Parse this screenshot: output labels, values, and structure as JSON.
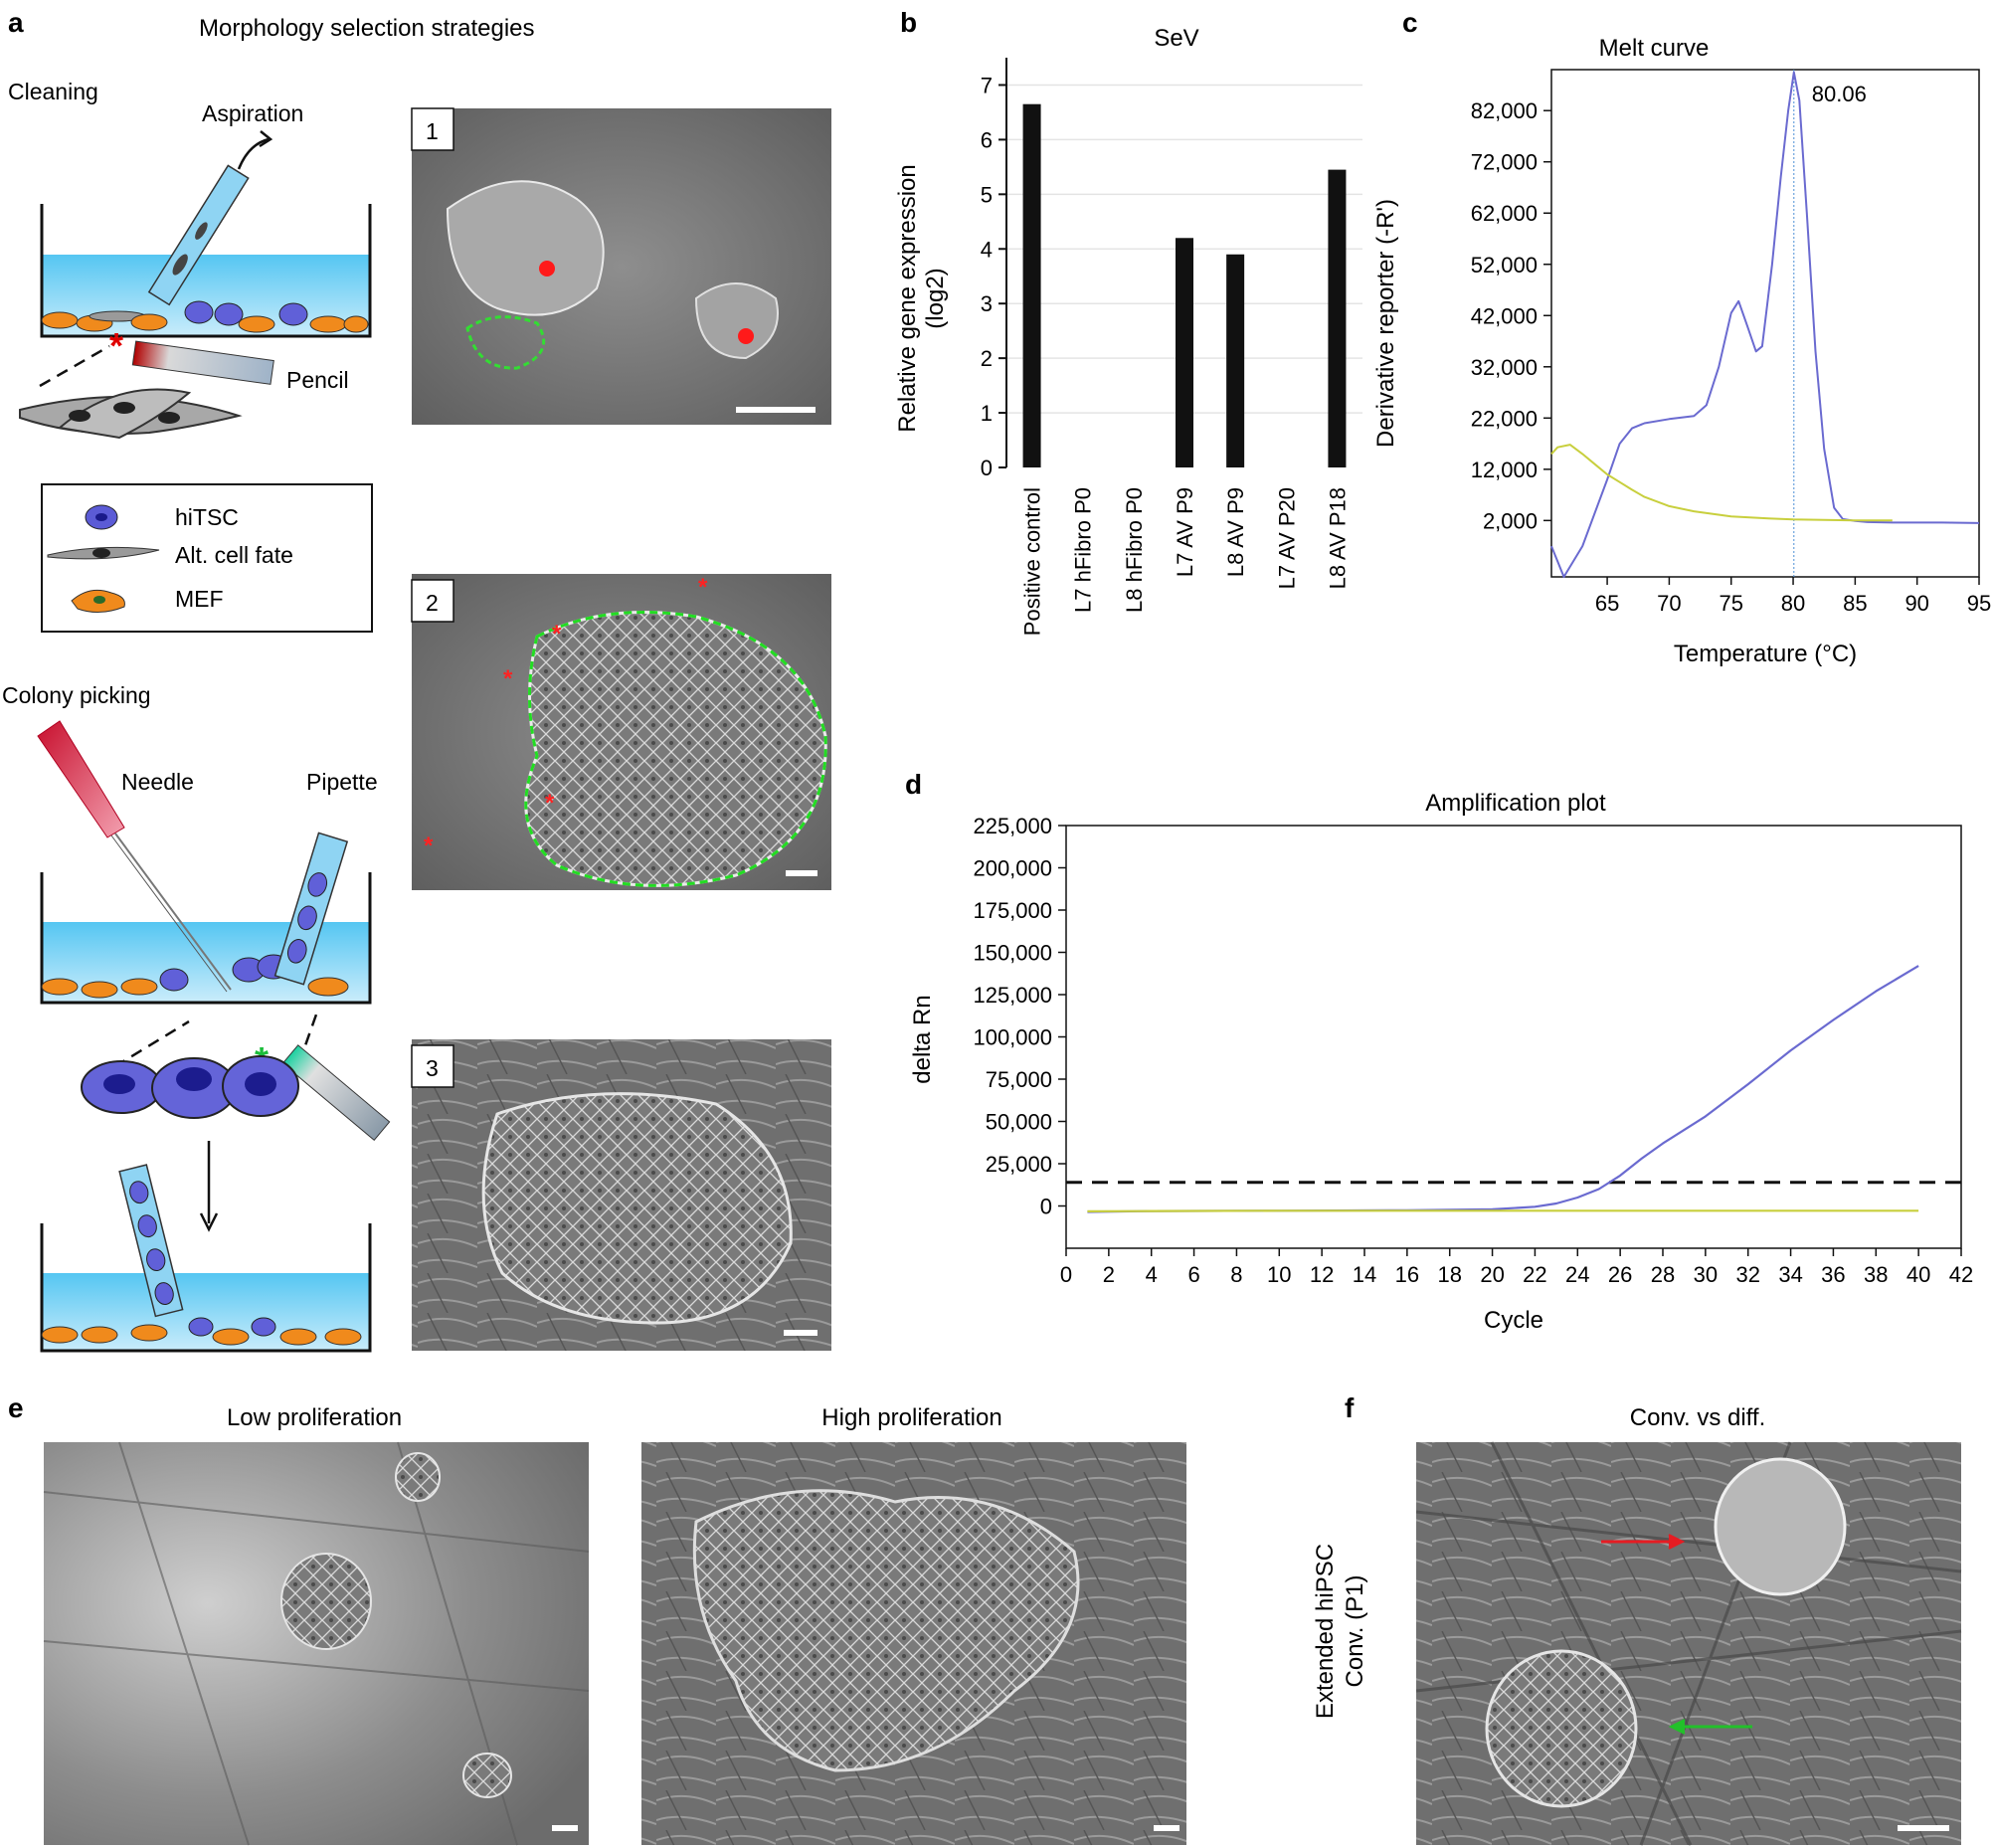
{
  "panels": {
    "a": {
      "label": "a",
      "title": "Morphology selection strategies",
      "cleaning_label": "Cleaning",
      "aspiration_label": "Aspiration",
      "pencil_label": "Pencil",
      "legend": [
        {
          "name": "hiTSC",
          "color": "#5b5bd6"
        },
        {
          "name": "Alt. cell fate",
          "color": "#8a8a8a"
        },
        {
          "name": "MEF",
          "color": "#f08a1c"
        }
      ],
      "colony_picking_label": "Colony picking",
      "needle_label": "Needle",
      "pipette_label": "Pipette",
      "micrographs": [
        {
          "number": "1"
        },
        {
          "number": "2"
        },
        {
          "number": "3"
        }
      ]
    },
    "b": {
      "label": "b"
    },
    "c": {
      "label": "c"
    },
    "d": {
      "label": "d"
    },
    "e": {
      "label": "e",
      "title_left": "Low proliferation",
      "title_right": "High proliferation"
    },
    "f": {
      "label": "f",
      "title": "Conv. vs diff.",
      "ylabel_line1": "Extended hiPSC",
      "ylabel_line2": "Conv. (P1)"
    }
  },
  "chart_data": [
    {
      "id": "b",
      "type": "bar",
      "title": "SeV",
      "ylabel_line1": "Relative gene expression",
      "ylabel_line2": "(log2)",
      "categories": [
        "Positive control",
        "L7 hFibro P0",
        "L8 hFibro P0",
        "L7 AV P9",
        "L8 AV P9",
        "L7 AV P20",
        "L8 AV P18"
      ],
      "values": [
        6.65,
        0,
        0,
        4.2,
        3.9,
        0,
        5.45
      ],
      "ylim": [
        0,
        7.5
      ],
      "yticks": [
        "0",
        "1",
        "2",
        "3",
        "4",
        "5",
        "6",
        "7"
      ],
      "grid": true
    },
    {
      "id": "c",
      "type": "line",
      "title": "Melt curve",
      "xlabel": "Temperature (°C)",
      "ylabel": "Derivative reporter (-R')",
      "xlim": [
        60.5,
        95
      ],
      "ylim": [
        -9000,
        90000
      ],
      "xticks": [
        65,
        70,
        75,
        80,
        85,
        90,
        95
      ],
      "yticks": [
        "2,000",
        "12,000",
        "22,000",
        "32,000",
        "42,000",
        "52,000",
        "62,000",
        "72,000",
        "82,000"
      ],
      "annotation": "80.06",
      "peak_x": 80.06,
      "series": [
        {
          "color": "#6a6ad0",
          "x": [
            60.5,
            61.5,
            63,
            65,
            66,
            67,
            68,
            70,
            72,
            73,
            74,
            75,
            75.6,
            76.3,
            77,
            77.5,
            78.3,
            79,
            79.6,
            80.06,
            80.5,
            81.1,
            81.8,
            82.5,
            83.3,
            84,
            85,
            86,
            88,
            90,
            92,
            95
          ],
          "y": [
            -3000,
            -9000,
            -3000,
            10000,
            17000,
            20000,
            21000,
            21800,
            22400,
            24500,
            32000,
            42500,
            44800,
            40000,
            35000,
            36000,
            52000,
            69000,
            82000,
            89500,
            84000,
            62000,
            35000,
            16000,
            4500,
            2300,
            1900,
            1700,
            1600,
            1600,
            1600,
            1500
          ]
        },
        {
          "color": "#c8cf3d",
          "x": [
            60.5,
            61,
            62,
            63,
            64,
            65,
            66,
            67,
            68,
            70,
            72,
            75,
            78,
            80,
            85,
            88
          ],
          "y": [
            15000,
            16300,
            16800,
            15000,
            13000,
            11000,
            9500,
            8000,
            6600,
            4800,
            3800,
            2800,
            2400,
            2200,
            2000,
            2000
          ]
        }
      ]
    },
    {
      "id": "d",
      "type": "line",
      "title": "Amplification plot",
      "xlabel": "Cycle",
      "ylabel": "delta Rn",
      "xlim": [
        0,
        42
      ],
      "ylim": [
        -25000,
        225000
      ],
      "xticks": [
        0,
        2,
        4,
        6,
        8,
        10,
        12,
        14,
        16,
        18,
        20,
        22,
        24,
        26,
        28,
        30,
        32,
        34,
        36,
        38,
        40,
        42
      ],
      "yticks": [
        "0",
        "25,000",
        "50,000",
        "75,000",
        "100,000",
        "125,000",
        "150,000",
        "175,000",
        "200,000",
        "225,000"
      ],
      "threshold": 14000,
      "series": [
        {
          "color": "#6a6ad0",
          "x": [
            1,
            4,
            10,
            16,
            20,
            22,
            23,
            24,
            25,
            26,
            27,
            28,
            30,
            32,
            34,
            36,
            38,
            40
          ],
          "y": [
            -3500,
            -3000,
            -2800,
            -2500,
            -2000,
            -500,
            1500,
            5000,
            10000,
            18000,
            28000,
            37000,
            53000,
            72000,
            92000,
            110000,
            127000,
            142000
          ]
        },
        {
          "color": "#c8cf3d",
          "x": [
            1,
            4,
            10,
            20,
            30,
            40
          ],
          "y": [
            -3200,
            -3000,
            -2800,
            -2800,
            -2800,
            -2800
          ]
        }
      ]
    }
  ]
}
